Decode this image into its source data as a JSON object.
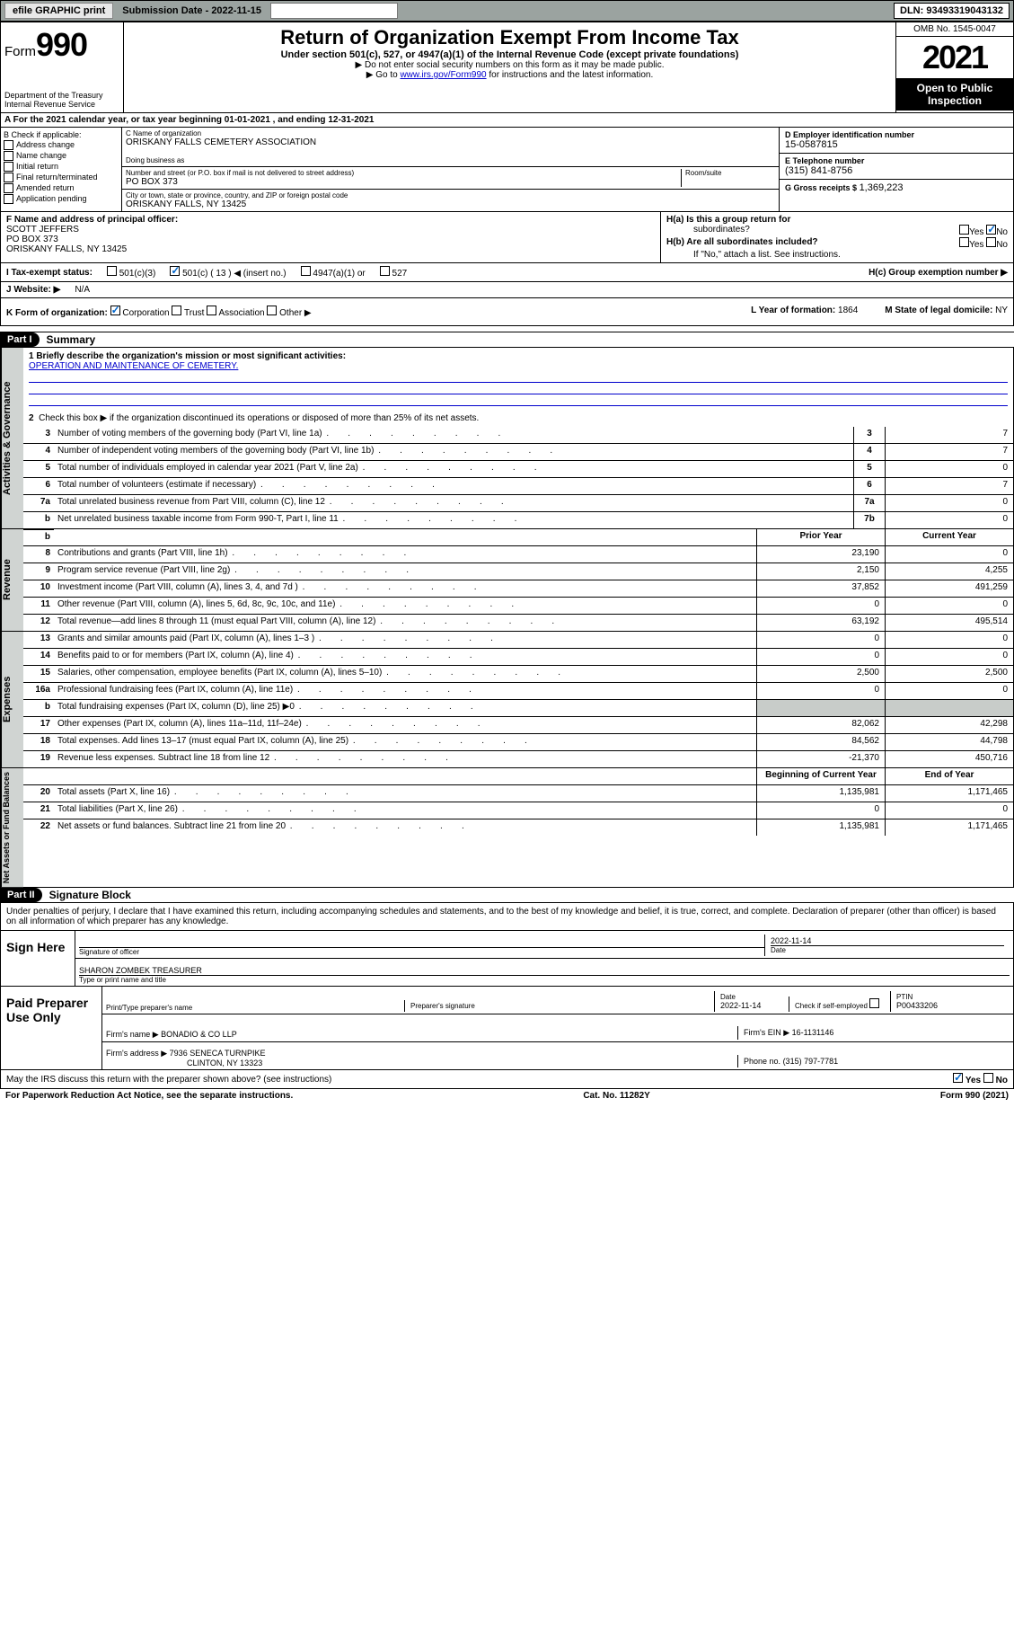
{
  "topbar": {
    "efile": "efile GRAPHIC print",
    "submission": "Submission Date - 2022-11-15",
    "dln": "DLN: 93493319043132"
  },
  "header": {
    "form_prefix": "Form",
    "form_num": "990",
    "dept": "Department of the Treasury",
    "irs": "Internal Revenue Service",
    "title": "Return of Organization Exempt From Income Tax",
    "sub1": "Under section 501(c), 527, or 4947(a)(1) of the Internal Revenue Code (except private foundations)",
    "sub2": "▶ Do not enter social security numbers on this form as it may be made public.",
    "sub3_pre": "▶ Go to ",
    "sub3_link": "www.irs.gov/Form990",
    "sub3_post": " for instructions and the latest information.",
    "omb": "OMB No. 1545-0047",
    "year": "2021",
    "open1": "Open to Public",
    "open2": "Inspection"
  },
  "row_a": "A For the 2021 calendar year, or tax year beginning 01-01-2021   , and ending 12-31-2021",
  "col_b": {
    "label": "B Check if applicable:",
    "opts": [
      "Address change",
      "Name change",
      "Initial return",
      "Final return/terminated",
      "Amended return",
      "Application pending"
    ]
  },
  "cd": {
    "c_label": "C Name of organization",
    "c_value": "ORISKANY FALLS CEMETERY ASSOCIATION",
    "dba_label": "Doing business as",
    "addr_label": "Number and street (or P.O. box if mail is not delivered to street address)",
    "room_label": "Room/suite",
    "addr_value": "PO BOX 373",
    "city_label": "City or town, state or province, country, and ZIP or foreign postal code",
    "city_value": "ORISKANY FALLS, NY  13425"
  },
  "de": {
    "d_label": "D Employer identification number",
    "d_value": "15-0587815",
    "e_label": "E Telephone number",
    "e_value": "(315) 841-8756",
    "g_label": "G Gross receipts $",
    "g_value": "1,369,223"
  },
  "f": {
    "label": "F Name and address of principal officer:",
    "name": "SCOTT JEFFERS",
    "addr1": "PO BOX 373",
    "addr2": "ORISKANY FALLS, NY  13425"
  },
  "h": {
    "ha": "H(a)  Is this a group return for",
    "ha2": "subordinates?",
    "hb": "H(b)  Are all subordinates included?",
    "hnote": "If \"No,\" attach a list. See instructions.",
    "hc": "H(c)  Group exemption number ▶",
    "yes": "Yes",
    "no": "No"
  },
  "i": {
    "label": "I    Tax-exempt status:",
    "opts": [
      "501(c)(3)",
      "501(c) ( 13 ) ◀ (insert no.)",
      "4947(a)(1) or",
      "527"
    ]
  },
  "j": {
    "label": "J   Website: ▶",
    "value": "N/A"
  },
  "k": {
    "label": "K Form of organization:",
    "opts": [
      "Corporation",
      "Trust",
      "Association",
      "Other ▶"
    ],
    "l_label": "L Year of formation:",
    "l_value": "1864",
    "m_label": "M State of legal domicile:",
    "m_value": "NY"
  },
  "part1": {
    "hdr": "Part I",
    "title": "Summary"
  },
  "summary": {
    "q1_label": "1  Briefly describe the organization's mission or most significant activities:",
    "q1_value": "OPERATION AND MAINTENANCE OF CEMETERY.",
    "q2": "Check this box ▶      if the organization discontinued its operations or disposed of more than 25% of its net assets.",
    "rows_gov": [
      {
        "n": "3",
        "d": "Number of voting members of the governing body (Part VI, line 1a)",
        "b": "3",
        "v": "7"
      },
      {
        "n": "4",
        "d": "Number of independent voting members of the governing body (Part VI, line 1b)",
        "b": "4",
        "v": "7"
      },
      {
        "n": "5",
        "d": "Total number of individuals employed in calendar year 2021 (Part V, line 2a)",
        "b": "5",
        "v": "0"
      },
      {
        "n": "6",
        "d": "Total number of volunteers (estimate if necessary)",
        "b": "6",
        "v": "7"
      },
      {
        "n": "7a",
        "d": "Total unrelated business revenue from Part VIII, column (C), line 12",
        "b": "7a",
        "v": "0"
      },
      {
        "n": "b",
        "d": "Net unrelated business taxable income from Form 990-T, Part I, line 11",
        "b": "7b",
        "v": "0"
      }
    ],
    "col_prior": "Prior Year",
    "col_current": "Current Year",
    "rows_rev": [
      {
        "n": "8",
        "d": "Contributions and grants (Part VIII, line 1h)",
        "p": "23,190",
        "c": "0"
      },
      {
        "n": "9",
        "d": "Program service revenue (Part VIII, line 2g)",
        "p": "2,150",
        "c": "4,255"
      },
      {
        "n": "10",
        "d": "Investment income (Part VIII, column (A), lines 3, 4, and 7d )",
        "p": "37,852",
        "c": "491,259"
      },
      {
        "n": "11",
        "d": "Other revenue (Part VIII, column (A), lines 5, 6d, 8c, 9c, 10c, and 11e)",
        "p": "0",
        "c": "0"
      },
      {
        "n": "12",
        "d": "Total revenue—add lines 8 through 11 (must equal Part VIII, column (A), line 12)",
        "p": "63,192",
        "c": "495,514"
      }
    ],
    "rows_exp": [
      {
        "n": "13",
        "d": "Grants and similar amounts paid (Part IX, column (A), lines 1–3 )",
        "p": "0",
        "c": "0"
      },
      {
        "n": "14",
        "d": "Benefits paid to or for members (Part IX, column (A), line 4)",
        "p": "0",
        "c": "0"
      },
      {
        "n": "15",
        "d": "Salaries, other compensation, employee benefits (Part IX, column (A), lines 5–10)",
        "p": "2,500",
        "c": "2,500"
      },
      {
        "n": "16a",
        "d": "Professional fundraising fees (Part IX, column (A), line 11e)",
        "p": "0",
        "c": "0"
      },
      {
        "n": "b",
        "d": "Total fundraising expenses (Part IX, column (D), line 25) ▶0",
        "p": "",
        "c": "",
        "shaded": true
      },
      {
        "n": "17",
        "d": "Other expenses (Part IX, column (A), lines 11a–11d, 11f–24e)",
        "p": "82,062",
        "c": "42,298"
      },
      {
        "n": "18",
        "d": "Total expenses. Add lines 13–17 (must equal Part IX, column (A), line 25)",
        "p": "84,562",
        "c": "44,798"
      },
      {
        "n": "19",
        "d": "Revenue less expenses. Subtract line 18 from line 12",
        "p": "-21,370",
        "c": "450,716"
      }
    ],
    "col_begin": "Beginning of Current Year",
    "col_end": "End of Year",
    "rows_net": [
      {
        "n": "20",
        "d": "Total assets (Part X, line 16)",
        "p": "1,135,981",
        "c": "1,171,465"
      },
      {
        "n": "21",
        "d": "Total liabilities (Part X, line 26)",
        "p": "0",
        "c": "0"
      },
      {
        "n": "22",
        "d": "Net assets or fund balances. Subtract line 21 from line 20",
        "p": "1,135,981",
        "c": "1,171,465"
      }
    ]
  },
  "part2": {
    "hdr": "Part II",
    "title": "Signature Block",
    "decl": "Under penalties of perjury, I declare that I have examined this return, including accompanying schedules and statements, and to the best of my knowledge and belief, it is true, correct, and complete. Declaration of preparer (other than officer) is based on all information of which preparer has any knowledge."
  },
  "sign": {
    "label": "Sign Here",
    "sig_officer": "Signature of officer",
    "date_label": "Date",
    "date_value": "2022-11-14",
    "name": "SHARON ZOMBEK  TREASURER",
    "name_label": "Type or print name and title"
  },
  "prep": {
    "label": "Paid Preparer Use Only",
    "h_name": "Print/Type preparer's name",
    "h_sig": "Preparer's signature",
    "h_date": "Date",
    "date_value": "2022-11-14",
    "h_check": "Check        if self-employed",
    "h_ptin": "PTIN",
    "ptin_value": "P00433206",
    "firm_name_l": "Firm's name    ▶",
    "firm_name_v": "BONADIO & CO LLP",
    "firm_ein_l": "Firm's EIN ▶",
    "firm_ein_v": "16-1131146",
    "firm_addr_l": "Firm's address ▶",
    "firm_addr_v": "7936 SENECA TURNPIKE",
    "firm_addr2": "CLINTON, NY  13323",
    "phone_l": "Phone no.",
    "phone_v": "(315) 797-7781"
  },
  "may_irs": "May the IRS discuss this return with the preparer shown above? (see instructions)",
  "footer": {
    "pra": "For Paperwork Reduction Act Notice, see the separate instructions.",
    "cat": "Cat. No. 11282Y",
    "form": "Form 990 (2021)"
  }
}
